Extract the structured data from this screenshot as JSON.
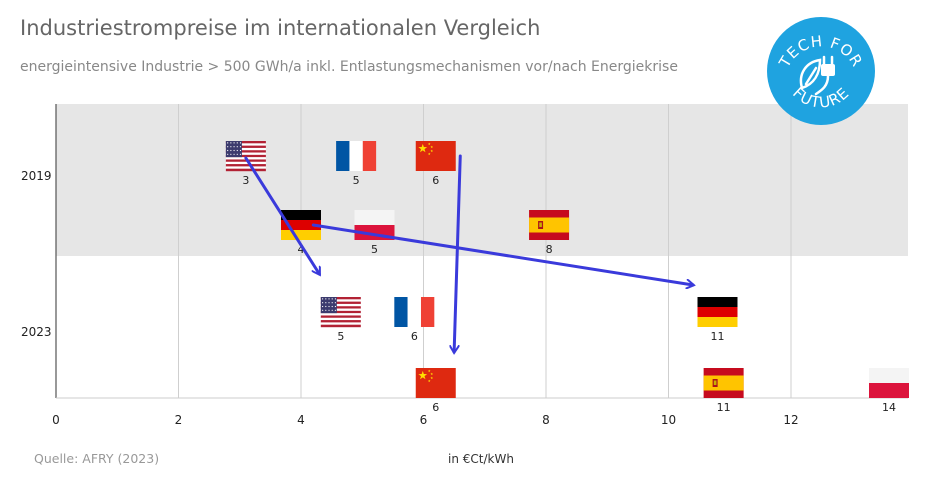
{
  "title": "Industriestrompreise im internationalen Vergleich",
  "subtitle": "energieintensive Industrie > 500 GWh/a inkl. Entlastungsmechanismen vor/nach Energiekrise",
  "source": "Quelle: AFRY (2023)",
  "logo": {
    "top_text": "TECH FOR",
    "bottom_text": "FUTURE",
    "icon": "plug-leaf-icon",
    "color": "#1fa3e0"
  },
  "chart_data": {
    "type": "scatter",
    "title": "Industriestrompreise im internationalen Vergleich",
    "subtitle": "energieintensive Industrie > 500 GWh/a inkl. Entlastungsmechanismen vor/nach Energiekrise",
    "xlabel": "in €Ct/kWh",
    "ylabel": "",
    "xlim": [
      0,
      14
    ],
    "xticks": [
      0,
      2,
      4,
      6,
      8,
      10,
      12
    ],
    "categories": [
      "2019",
      "2023"
    ],
    "grid": true,
    "highlight_band": "2019",
    "marker": "flag",
    "series": [
      {
        "country": "USA",
        "flag": "us",
        "year": "2019",
        "row": 0,
        "x": 3.1,
        "label": "3"
      },
      {
        "country": "France",
        "flag": "fr",
        "year": "2019",
        "row": 0,
        "x": 4.9,
        "label": "5"
      },
      {
        "country": "China",
        "flag": "cn",
        "year": "2019",
        "row": 0,
        "x": 6.2,
        "label": "6"
      },
      {
        "country": "Germany",
        "flag": "de",
        "year": "2019",
        "row": 1,
        "x": 4.0,
        "label": "4"
      },
      {
        "country": "Poland",
        "flag": "pl",
        "year": "2019",
        "row": 1,
        "x": 5.2,
        "label": "5"
      },
      {
        "country": "Spain",
        "flag": "es",
        "year": "2019",
        "row": 1,
        "x": 8.05,
        "label": "8"
      },
      {
        "country": "USA",
        "flag": "us",
        "year": "2023",
        "row": 0,
        "x": 4.65,
        "label": "5"
      },
      {
        "country": "France",
        "flag": "fr",
        "year": "2023",
        "row": 0,
        "x": 5.85,
        "label": "6"
      },
      {
        "country": "Germany",
        "flag": "de",
        "year": "2023",
        "row": 0,
        "x": 10.8,
        "label": "11"
      },
      {
        "country": "China",
        "flag": "cn",
        "year": "2023",
        "row": 1,
        "x": 6.2,
        "label": "6"
      },
      {
        "country": "Spain",
        "flag": "es",
        "year": "2023",
        "row": 1,
        "x": 10.9,
        "label": "11"
      },
      {
        "country": "Poland",
        "flag": "pl",
        "year": "2023",
        "row": 1,
        "x": 13.6,
        "label": "14"
      }
    ],
    "arrows": [
      {
        "country": "USA",
        "from": 3.1,
        "to": 4.3
      },
      {
        "country": "Germany",
        "from": 4.2,
        "to": 10.4
      },
      {
        "country": "China",
        "from": 6.6,
        "to": 6.5
      }
    ],
    "arrow_color": "#3a3adb"
  }
}
